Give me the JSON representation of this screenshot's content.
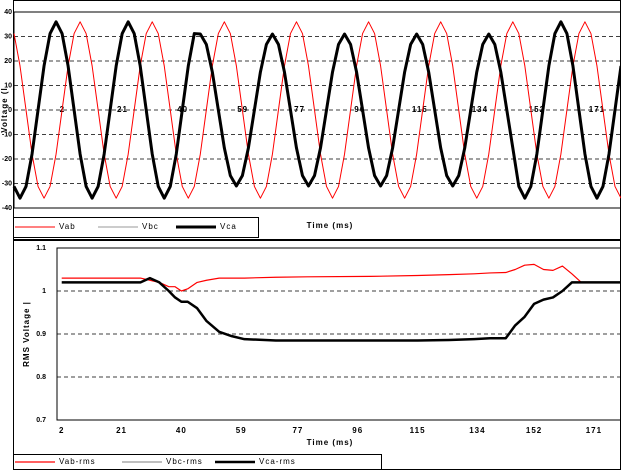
{
  "chart_data": [
    {
      "type": "line",
      "x_label": "Time (ms)",
      "y_label": "Voltage (l",
      "grid": true,
      "legend": "bottom-left",
      "xlim": [
        -13.3,
        178.6
      ],
      "ylim": [
        -40,
        40
      ],
      "yticks": [
        40,
        30,
        20,
        10,
        0,
        -10,
        -20,
        -30,
        -40
      ],
      "xticks": [
        2,
        21,
        40,
        59,
        77,
        96,
        115,
        134,
        152,
        171
      ],
      "x": [
        -13.3,
        -11.4,
        -9.5,
        -7.6,
        -5.7,
        -3.8,
        -1.9,
        0,
        1.9,
        3.8,
        5.7,
        7.6,
        9.5,
        11.4,
        13.3,
        15.2,
        17.1,
        19,
        20.9,
        22.8,
        24.7,
        26.6,
        28.5,
        30.4,
        32.3,
        34.2,
        36.1,
        38,
        39.9,
        41.8,
        43.7,
        45.6,
        47.5,
        49.4,
        51.3,
        53.2,
        55.1,
        57,
        58.9,
        60.8,
        62.7,
        64.6,
        66.5,
        68.4,
        70.3,
        72.2,
        74.1,
        76,
        77.9,
        79.8,
        81.7,
        83.6,
        85.5,
        87.4,
        89.3,
        91.2,
        93.1,
        95,
        96.9,
        98.8,
        100.7,
        102.6,
        104.5,
        106.4,
        108.3,
        110.2,
        112.1,
        114,
        115.9,
        117.8,
        119.7,
        121.6,
        123.5,
        125.4,
        127.3,
        129.2,
        131.1,
        133,
        134.9,
        136.8,
        138.7,
        140.6,
        142.5,
        144.4,
        146.3,
        148.2,
        150.1,
        152,
        153.9,
        155.8,
        157.7,
        159.6,
        161.5,
        163.4,
        165.3,
        167.2,
        169.1,
        171,
        172.9,
        174.8,
        176.7,
        178.6
      ],
      "series": [
        {
          "name": "Vab",
          "color": "#ff0000",
          "values": [
            31.2,
            18,
            0,
            -18,
            -31.2,
            -36,
            -31.2,
            -18,
            0,
            18,
            31.2,
            36,
            31.2,
            18,
            0,
            -18,
            -31.2,
            -36,
            -31.2,
            -18,
            0,
            18,
            31.2,
            36,
            31.2,
            18,
            0,
            -18,
            -31.2,
            -36,
            -31.2,
            -18,
            0,
            18,
            31.2,
            36,
            31.2,
            18,
            0,
            -18,
            -31.2,
            -36,
            -31.2,
            -18,
            0,
            18,
            31.2,
            36,
            31.2,
            18,
            0,
            -18,
            -31.2,
            -36,
            -31.2,
            -18,
            0,
            18,
            31.2,
            36,
            31.2,
            18,
            0,
            -18,
            -31.2,
            -36,
            -31.2,
            -18,
            0,
            18,
            31.2,
            36,
            31.2,
            18,
            0,
            -18,
            -31.2,
            -36,
            -31.2,
            -18,
            0,
            18,
            31.2,
            36,
            31.2,
            18,
            0,
            -18,
            -31.2,
            -36,
            -31.2,
            -18,
            0,
            18,
            31.2,
            36,
            31.2,
            18,
            0,
            -18,
            -31.2,
            -36
          ]
        },
        {
          "name": "Vbc",
          "color": "#999999",
          "values": [
            null,
            null,
            null,
            null,
            null,
            null,
            null,
            null,
            null,
            null,
            null,
            null,
            null,
            null,
            null,
            null,
            null,
            null,
            null,
            null,
            null,
            null,
            null,
            null,
            null,
            null,
            null,
            null,
            null,
            null,
            null,
            null,
            null,
            null,
            null,
            null,
            null,
            null,
            null,
            null,
            null,
            null,
            null,
            null,
            null,
            null,
            null,
            null,
            null,
            null,
            null,
            null,
            null,
            null,
            null,
            null,
            null,
            null,
            null,
            null,
            null,
            null,
            null,
            null,
            null,
            null,
            null,
            null,
            null,
            null,
            null,
            null,
            null,
            null,
            null,
            null,
            null,
            null,
            null,
            null,
            null,
            null,
            null,
            null,
            null,
            null,
            null,
            null,
            null,
            null,
            null,
            null,
            null,
            null,
            null,
            null,
            null,
            null,
            null,
            null,
            null,
            null
          ]
        },
        {
          "name": "Vca",
          "color": "#000000",
          "values": [
            -31.2,
            -36,
            -31.2,
            -18,
            0,
            18,
            31.2,
            36,
            31.2,
            18,
            0,
            -18,
            -31.2,
            -36,
            -31.2,
            -18,
            0,
            18,
            31.2,
            36,
            31.2,
            18,
            0,
            -18,
            -31.2,
            -36,
            -31.2,
            -18,
            0,
            18,
            31.2,
            31,
            26.8,
            15.5,
            0,
            -15.5,
            -26.8,
            -31,
            -26.8,
            -15.5,
            0,
            15.5,
            26.8,
            31,
            26.8,
            15.5,
            0,
            -15.5,
            -26.8,
            -31,
            -26.8,
            -15.5,
            0,
            15.5,
            26.8,
            31,
            26.8,
            15.5,
            0,
            -15.5,
            -26.8,
            -31,
            -26.8,
            -15.5,
            0,
            15.5,
            26.8,
            31,
            26.8,
            15.5,
            0,
            -15.5,
            -26.8,
            -31,
            -26.8,
            -15.5,
            0,
            15.5,
            26.8,
            31,
            26.8,
            15.5,
            0,
            -15.5,
            -31.2,
            -36,
            -31.2,
            -18,
            0,
            18,
            31.2,
            36,
            31.2,
            18,
            0,
            -18,
            -31.2,
            -36,
            -31.2,
            -18,
            0,
            18
          ]
        }
      ]
    },
    {
      "type": "line",
      "x_label": "Time (ms)",
      "y_label": "RMS Voltage |",
      "grid": true,
      "legend": "bottom-left",
      "xlim": [
        0.5,
        179.6
      ],
      "ylim": [
        0.7,
        1.1
      ],
      "yticks": [
        1.1,
        1,
        0.9,
        0.8,
        0.7
      ],
      "xticks": [
        2,
        21,
        40,
        59,
        77,
        96,
        115,
        134,
        152,
        171
      ],
      "x": [
        2,
        10,
        20,
        27,
        30,
        33,
        36,
        38,
        40,
        42,
        45,
        48,
        52,
        56,
        60,
        70,
        80,
        100,
        115,
        125,
        133,
        138,
        143,
        146,
        149,
        152,
        155,
        158,
        161,
        164,
        167,
        170,
        175,
        179.6
      ],
      "series": [
        {
          "name": "Vab-rms",
          "color": "#ff0000",
          "values": [
            1.03,
            1.03,
            1.03,
            1.03,
            1.025,
            1.02,
            1.01,
            1.01,
            1.0,
            1.005,
            1.02,
            1.025,
            1.03,
            1.03,
            1.03,
            1.032,
            1.033,
            1.034,
            1.036,
            1.038,
            1.04,
            1.042,
            1.043,
            1.05,
            1.06,
            1.062,
            1.05,
            1.048,
            1.058,
            1.04,
            1.02,
            1.02,
            1.02,
            1.02
          ]
        },
        {
          "name": "Vbc-rms",
          "color": "#999999",
          "values": [
            null,
            null,
            null,
            null,
            null,
            null,
            null,
            null,
            null,
            null,
            null,
            null,
            null,
            null,
            null,
            null,
            null,
            null,
            null,
            null,
            null,
            null,
            null,
            null,
            null,
            null,
            null,
            null,
            null,
            null,
            null,
            null,
            null,
            null
          ]
        },
        {
          "name": "Vca-rms",
          "color": "#000000",
          "values": [
            1.02,
            1.02,
            1.02,
            1.02,
            1.03,
            1.02,
            1.0,
            0.985,
            0.975,
            0.975,
            0.96,
            0.93,
            0.905,
            0.895,
            0.888,
            0.885,
            0.885,
            0.885,
            0.885,
            0.886,
            0.888,
            0.89,
            0.89,
            0.92,
            0.94,
            0.97,
            0.98,
            0.985,
            1.0,
            1.02,
            1.02,
            1.02,
            1.02,
            1.02
          ]
        }
      ]
    }
  ]
}
